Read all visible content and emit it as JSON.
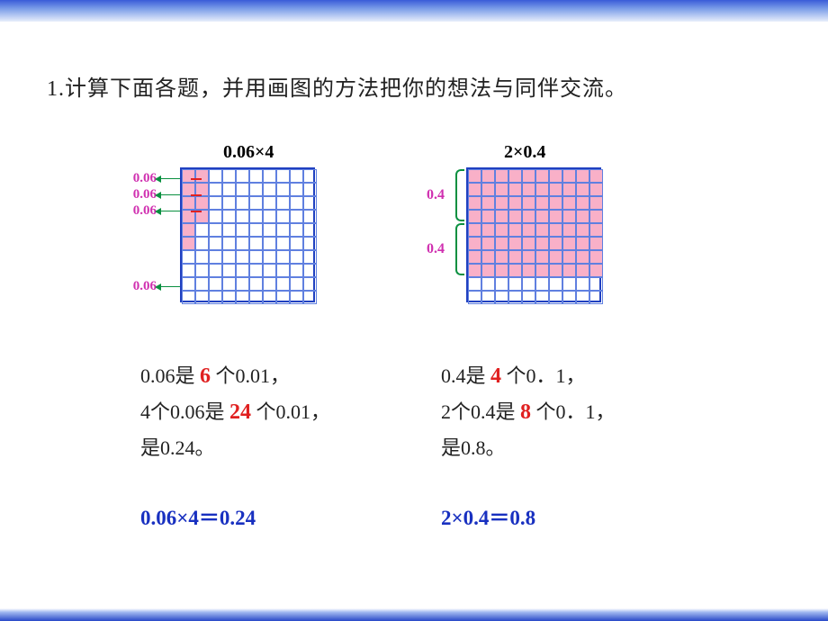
{
  "instruction": "1.计算下面各题，并用画图的方法把你的想法与同伴交流。",
  "problem1": {
    "title": "0.06×4",
    "grid": {
      "rows": 10,
      "cols": 10,
      "cell_size": 15,
      "border_color": "#6080e0",
      "fill_color": "#f9b0c8",
      "filled_rows": 4,
      "filled_cols": 2,
      "filled_extra_col_rows": 4
    },
    "row_labels": [
      "0.06",
      "0.06",
      "0.06",
      "0.06"
    ],
    "explain_lines": [
      {
        "pre": "0.06是 ",
        "red": "6",
        "post": " 个0.01，"
      },
      {
        "pre": "4个0.06是 ",
        "red": "24",
        "post": " 个0.01，"
      },
      {
        "pre": "是0.24。",
        "red": "",
        "post": ""
      }
    ],
    "result": "0.06×4＝0.24"
  },
  "problem2": {
    "title": "2×0.4",
    "grid": {
      "rows": 10,
      "cols": 10,
      "cell_size": 15,
      "border_color": "#6080e0",
      "fill_color": "#f9b0c8",
      "filled_rows": 8,
      "filled_cols": 10
    },
    "brace_labels": [
      "0.4",
      "0.4"
    ],
    "explain_lines": [
      {
        "pre": "0.4是 ",
        "red": "4",
        "post": " 个0．1，"
      },
      {
        "pre": "2个0.4是 ",
        "red": "8",
        "post": " 个0．1，"
      },
      {
        "pre": "是0.8。",
        "red": "",
        "post": ""
      }
    ],
    "result": "2×0.4＝0.8"
  },
  "colors": {
    "accent_blue": "#1830c0",
    "accent_red": "#e02020",
    "accent_magenta": "#d030b0",
    "accent_green": "#0a9040",
    "grid_fill": "#f9b0c8"
  }
}
